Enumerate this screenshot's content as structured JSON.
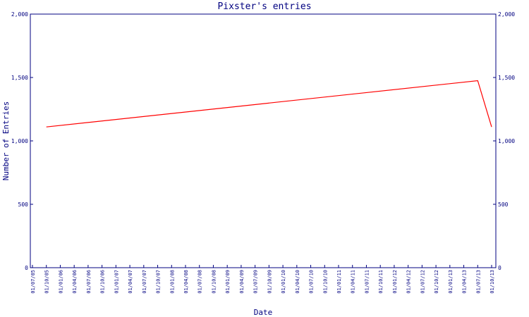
{
  "chart_data": {
    "type": "line",
    "title": "Pixster's entries",
    "xlabel": "Date",
    "ylabel": "Number of Entries",
    "ylim": [
      0,
      2000
    ],
    "y_ticks": [
      "0",
      "500",
      "1,000",
      "1,500",
      "2,000"
    ],
    "x_ticks": [
      "01/07/05",
      "01/10/05",
      "01/01/06",
      "01/04/06",
      "01/07/06",
      "01/10/06",
      "01/01/07",
      "01/04/07",
      "01/07/07",
      "01/10/07",
      "01/01/08",
      "01/04/08",
      "01/07/08",
      "01/10/08",
      "01/01/09",
      "01/04/09",
      "01/07/09",
      "01/10/09",
      "01/01/10",
      "01/04/10",
      "01/07/10",
      "01/10/10",
      "01/01/11",
      "01/04/11",
      "01/07/11",
      "01/10/11",
      "01/01/12",
      "01/04/12",
      "01/07/12",
      "01/10/12",
      "01/01/13",
      "01/04/13",
      "01/07/13",
      "01/10/13"
    ],
    "grid": false,
    "colors": {
      "line": "#ff0000",
      "axis": "#000080",
      "text": "#000080"
    },
    "series": [
      {
        "x": [
          "01/10/05",
          "01/07/13",
          "01/10/13"
        ],
        "values": [
          1110,
          1475,
          1110
        ]
      }
    ]
  }
}
